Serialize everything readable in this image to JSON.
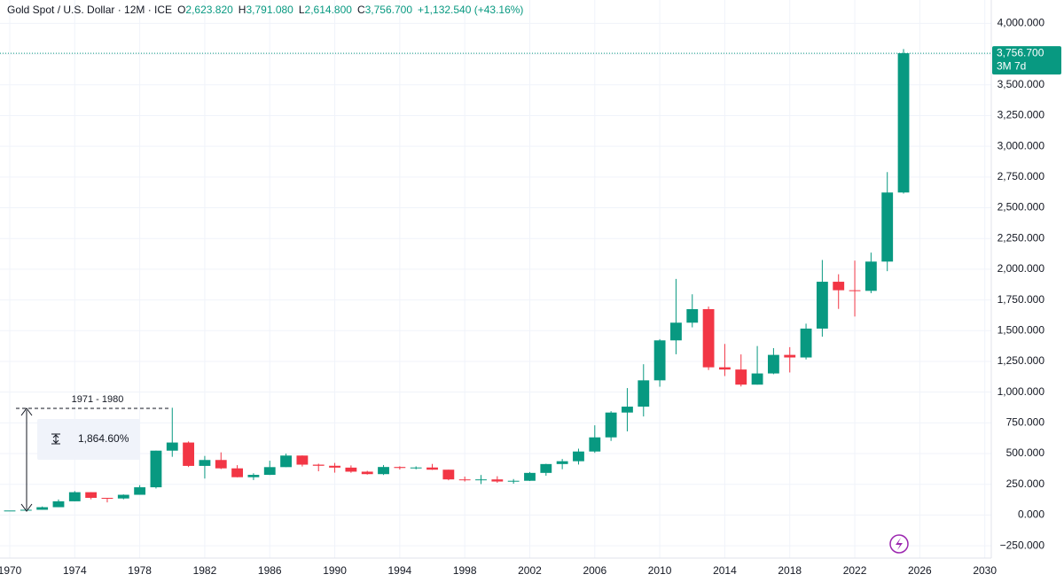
{
  "chart_data": {
    "type": "candlestick",
    "header": {
      "symbol": "Gold Spot / U.S. Dollar · 12M · ICE",
      "ohlc": [
        {
          "label": "O",
          "value": "2,623.820"
        },
        {
          "label": "H",
          "value": "3,791.080"
        },
        {
          "label": "L",
          "value": "2,614.800"
        },
        {
          "label": "C",
          "value": "3,756.700"
        }
      ],
      "change": "+1,132.540 (+43.16%)"
    },
    "x": [
      1970,
      1971,
      1972,
      1973,
      1974,
      1975,
      1976,
      1977,
      1978,
      1979,
      1980,
      1981,
      1982,
      1983,
      1984,
      1985,
      1986,
      1987,
      1988,
      1989,
      1990,
      1991,
      1992,
      1993,
      1994,
      1995,
      1996,
      1997,
      1998,
      1999,
      2000,
      2001,
      2002,
      2003,
      2004,
      2005,
      2006,
      2007,
      2008,
      2009,
      2010,
      2011,
      2012,
      2013,
      2014,
      2015,
      2016,
      2017,
      2018,
      2019,
      2020,
      2021,
      2022,
      2023,
      2024,
      2025
    ],
    "series": {
      "open": [
        35,
        37,
        43,
        64,
        112,
        186,
        140,
        135,
        165,
        226,
        524,
        590,
        400,
        448,
        380,
        308,
        327,
        390,
        484,
        410,
        401,
        386,
        353,
        333,
        391,
        383,
        387,
        369,
        290,
        288,
        290,
        273,
        279,
        343,
        415,
        438,
        517,
        632,
        834,
        882,
        1096,
        1421,
        1565,
        1675,
        1202,
        1184,
        1061,
        1152,
        1303,
        1282,
        1517,
        1898,
        1829,
        1824,
        2062,
        2624
      ],
      "high": [
        35,
        44,
        70,
        127,
        195,
        186,
        140,
        168,
        243,
        524,
        873,
        599,
        481,
        510,
        406,
        340,
        442,
        500,
        485,
        418,
        424,
        404,
        360,
        407,
        397,
        396,
        416,
        369,
        313,
        326,
        316,
        293,
        350,
        417,
        456,
        540,
        730,
        845,
        1033,
        1227,
        1431,
        1921,
        1796,
        1696,
        1392,
        1307,
        1375,
        1358,
        1366,
        1557,
        2075,
        1959,
        2070,
        2135,
        2790,
        3791
      ],
      "low": [
        35,
        37,
        43,
        64,
        112,
        128,
        103,
        128,
        165,
        216,
        474,
        391,
        297,
        374,
        307,
        285,
        326,
        390,
        395,
        356,
        345,
        344,
        329,
        326,
        370,
        372,
        367,
        283,
        273,
        252,
        263,
        255,
        277,
        320,
        373,
        411,
        506,
        603,
        681,
        802,
        1044,
        1308,
        1527,
        1180,
        1131,
        1046,
        1061,
        1146,
        1160,
        1266,
        1451,
        1677,
        1615,
        1805,
        1984,
        2615
      ],
      "close": [
        37,
        43,
        64,
        112,
        186,
        140,
        135,
        165,
        226,
        524,
        590,
        400,
        448,
        380,
        308,
        327,
        390,
        484,
        410,
        401,
        386,
        353,
        333,
        391,
        383,
        387,
        369,
        290,
        288,
        290,
        273,
        279,
        343,
        415,
        438,
        517,
        632,
        834,
        882,
        1096,
        1421,
        1565,
        1675,
        1202,
        1184,
        1061,
        1152,
        1303,
        1282,
        1517,
        1898,
        1829,
        1824,
        2062,
        2624,
        3757
      ]
    },
    "up_color": "#089981",
    "down_color": "#f23645",
    "xlim": [
      1969.4,
      2030.4
    ],
    "xticks": [
      1970,
      1974,
      1978,
      1982,
      1986,
      1990,
      1994,
      1998,
      2002,
      2006,
      2010,
      2014,
      2018,
      2022,
      2026,
      2030
    ],
    "ylim": [
      -350,
      4190
    ],
    "yticks": [
      {
        "value": -250,
        "label": "−250.000"
      },
      {
        "value": 0,
        "label": "0.000"
      },
      {
        "value": 250,
        "label": "250.000"
      },
      {
        "value": 500,
        "label": "500.000"
      },
      {
        "value": 750,
        "label": "750.000"
      },
      {
        "value": 1000,
        "label": "1,000.000"
      },
      {
        "value": 1250,
        "label": "1,250.000"
      },
      {
        "value": 1500,
        "label": "1,500.000"
      },
      {
        "value": 1750,
        "label": "1,750.000"
      },
      {
        "value": 2000,
        "label": "2,000.000"
      },
      {
        "value": 2250,
        "label": "2,250.000"
      },
      {
        "value": 2500,
        "label": "2,500.000"
      },
      {
        "value": 2750,
        "label": "2,750.000"
      },
      {
        "value": 3000,
        "label": "3,000.000"
      },
      {
        "value": 3250,
        "label": "3,250.000"
      },
      {
        "value": 3500,
        "label": "3,500.000"
      },
      {
        "value": 3750,
        "label": "3,750.000"
      },
      {
        "value": 4000,
        "label": "4,000.000"
      }
    ],
    "grid": true,
    "last_price": {
      "value": 3756.7,
      "label": "3,756.700",
      "countdown": "3M 7d"
    },
    "measure": {
      "range": "1971 - 1980",
      "change": "1,864.60%"
    }
  }
}
